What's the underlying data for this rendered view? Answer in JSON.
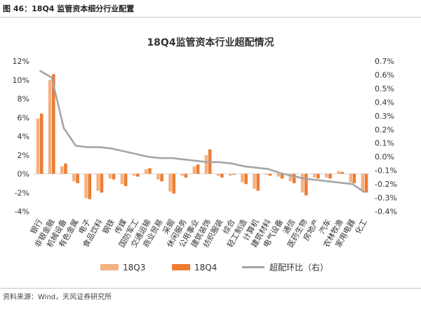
{
  "figure": {
    "label": "图 46：18Q4 监管资本细分行业配置",
    "source": "资料来源：Wind，天风证券研究所"
  },
  "chart_data": {
    "type": "bar",
    "title": "18Q4监管资本行业超配情况",
    "categories": [
      "银行",
      "非银金融",
      "机械设备",
      "有色金属",
      "电子",
      "食品饮料",
      "钢铁",
      "传媒",
      "国防军工",
      "交通运输",
      "商业贸易",
      "采掘",
      "休闲服务",
      "公用事业",
      "建筑装饰",
      "纺织服装",
      "综合",
      "轻工制造",
      "计算机",
      "建筑材料",
      "电气设备",
      "通信",
      "医药生物",
      "房地产",
      "汽车",
      "农林牧渔",
      "家用电器",
      "化工"
    ],
    "series": [
      {
        "name": "18Q3",
        "type": "bar",
        "axis": "left",
        "color": "#f4b183",
        "values": [
          5.9,
          10.0,
          0.8,
          -0.8,
          -2.6,
          -1.8,
          -0.5,
          -1.1,
          -0.2,
          0.5,
          -0.6,
          -1.9,
          -0.2,
          0.8,
          2.0,
          -0.2,
          -0.2,
          -0.9,
          -1.6,
          -0.1,
          -0.3,
          -0.8,
          -2.0,
          -0.4,
          -0.4,
          0.3,
          -0.9,
          -1.8
        ]
      },
      {
        "name": "18Q4",
        "type": "bar",
        "axis": "left",
        "color": "#ed7d31",
        "values": [
          6.4,
          10.6,
          1.1,
          -1.0,
          -2.7,
          -2.0,
          -0.6,
          -1.3,
          -0.3,
          0.6,
          -0.8,
          -2.1,
          -0.4,
          1.0,
          2.6,
          -0.4,
          -0.1,
          -1.1,
          -1.8,
          -0.2,
          -0.5,
          -1.0,
          -2.3,
          -0.5,
          -0.5,
          0.2,
          -1.0,
          -2.0
        ]
      },
      {
        "name": "超配环比（右）",
        "type": "line",
        "axis": "right",
        "color": "#a5a5a5",
        "values": [
          0.63,
          0.58,
          0.21,
          0.08,
          0.07,
          0.07,
          0.06,
          0.04,
          0.02,
          0.0,
          -0.01,
          -0.01,
          -0.02,
          -0.03,
          -0.04,
          -0.04,
          -0.05,
          -0.07,
          -0.08,
          -0.09,
          -0.12,
          -0.14,
          -0.16,
          -0.17,
          -0.18,
          -0.19,
          -0.2,
          -0.26
        ]
      }
    ],
    "y_left": {
      "min": -4,
      "max": 12,
      "ticks": [
        "-4%",
        "-2%",
        "0%",
        "2%",
        "4%",
        "6%",
        "8%",
        "10%",
        "12%"
      ]
    },
    "y_right": {
      "min": -0.4,
      "max": 0.7,
      "ticks": [
        "-0.4%",
        "-0.3%",
        "-0.2%",
        "-0.1%",
        "0.0%",
        "0.1%",
        "0.2%",
        "0.3%",
        "0.4%",
        "0.5%",
        "0.6%",
        "0.7%"
      ]
    },
    "legend": {
      "position": "bottom",
      "items": [
        "18Q3",
        "18Q4",
        "超配环比（右）"
      ]
    },
    "grid": false
  }
}
